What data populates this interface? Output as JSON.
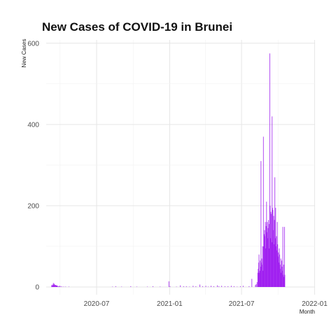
{
  "chart_data": {
    "type": "bar",
    "title": "New Cases of COVID-19 in Brunei",
    "xlabel": "Month",
    "ylabel": "New Cases",
    "x_ticks": [
      "2020-07",
      "2021-01",
      "2021-07",
      "2022-01"
    ],
    "y_ticks": [
      0,
      200,
      400,
      600
    ],
    "xlim": [
      "2020-02-25",
      "2022-01-02"
    ],
    "ylim": [
      0,
      610
    ],
    "grid": true,
    "bar_color": "#a020f0",
    "series": [
      {
        "values": [
          [
            "2020-03-09",
            1
          ],
          [
            "2020-03-10",
            5
          ],
          [
            "2020-03-11",
            4
          ],
          [
            "2020-03-12",
            6
          ],
          [
            "2020-03-13",
            3
          ],
          [
            "2020-03-14",
            10
          ],
          [
            "2020-03-15",
            6
          ],
          [
            "2020-03-16",
            8
          ],
          [
            "2020-03-17",
            6
          ],
          [
            "2020-03-18",
            4
          ],
          [
            "2020-03-19",
            5
          ],
          [
            "2020-03-20",
            5
          ],
          [
            "2020-03-21",
            3
          ],
          [
            "2020-03-22",
            4
          ],
          [
            "2020-03-23",
            4
          ],
          [
            "2020-03-24",
            3
          ],
          [
            "2020-03-26",
            2
          ],
          [
            "2020-03-28",
            2
          ],
          [
            "2020-03-30",
            3
          ],
          [
            "2020-04-02",
            2
          ],
          [
            "2020-04-05",
            1
          ],
          [
            "2020-04-09",
            1
          ],
          [
            "2020-04-14",
            1
          ],
          [
            "2020-04-22",
            1
          ],
          [
            "2020-08-10",
            1
          ],
          [
            "2020-08-18",
            2
          ],
          [
            "2020-09-02",
            1
          ],
          [
            "2020-09-25",
            2
          ],
          [
            "2020-10-10",
            1
          ],
          [
            "2020-11-06",
            1
          ],
          [
            "2020-11-20",
            2
          ],
          [
            "2020-12-08",
            1
          ],
          [
            "2020-12-30",
            14
          ],
          [
            "2021-01-02",
            2
          ],
          [
            "2021-01-18",
            1
          ],
          [
            "2021-01-28",
            4
          ],
          [
            "2021-02-05",
            2
          ],
          [
            "2021-02-12",
            2
          ],
          [
            "2021-02-20",
            1
          ],
          [
            "2021-03-01",
            3
          ],
          [
            "2021-03-08",
            2
          ],
          [
            "2021-03-18",
            6
          ],
          [
            "2021-03-25",
            2
          ],
          [
            "2021-04-02",
            3
          ],
          [
            "2021-04-08",
            1
          ],
          [
            "2021-04-15",
            3
          ],
          [
            "2021-04-22",
            2
          ],
          [
            "2021-05-01",
            4
          ],
          [
            "2021-05-05",
            2
          ],
          [
            "2021-05-12",
            3
          ],
          [
            "2021-05-20",
            2
          ],
          [
            "2021-05-28",
            2
          ],
          [
            "2021-06-05",
            3
          ],
          [
            "2021-06-12",
            2
          ],
          [
            "2021-06-20",
            1
          ],
          [
            "2021-06-28",
            2
          ],
          [
            "2021-07-05",
            3
          ],
          [
            "2021-07-20",
            2
          ],
          [
            "2021-07-27",
            20
          ],
          [
            "2021-08-05",
            5
          ],
          [
            "2021-08-07",
            7
          ],
          [
            "2021-08-09",
            12
          ],
          [
            "2021-08-11",
            35
          ],
          [
            "2021-08-12",
            45
          ],
          [
            "2021-08-13",
            60
          ],
          [
            "2021-08-14",
            80
          ],
          [
            "2021-08-15",
            35
          ],
          [
            "2021-08-16",
            40
          ],
          [
            "2021-08-17",
            65
          ],
          [
            "2021-08-18",
            50
          ],
          [
            "2021-08-19",
            310
          ],
          [
            "2021-08-20",
            60
          ],
          [
            "2021-08-21",
            70
          ],
          [
            "2021-08-22",
            55
          ],
          [
            "2021-08-23",
            100
          ],
          [
            "2021-08-24",
            40
          ],
          [
            "2021-08-25",
            370
          ],
          [
            "2021-08-26",
            100
          ],
          [
            "2021-08-27",
            130
          ],
          [
            "2021-08-28",
            140
          ],
          [
            "2021-08-29",
            125
          ],
          [
            "2021-08-30",
            160
          ],
          [
            "2021-08-31",
            95
          ],
          [
            "2021-09-01",
            150
          ],
          [
            "2021-09-02",
            210
          ],
          [
            "2021-09-03",
            135
          ],
          [
            "2021-09-04",
            160
          ],
          [
            "2021-09-05",
            120
          ],
          [
            "2021-09-06",
            145
          ],
          [
            "2021-09-07",
            165
          ],
          [
            "2021-09-08",
            95
          ],
          [
            "2021-09-09",
            155
          ],
          [
            "2021-09-10",
            575
          ],
          [
            "2021-09-11",
            200
          ],
          [
            "2021-09-12",
            120
          ],
          [
            "2021-09-13",
            185
          ],
          [
            "2021-09-14",
            180
          ],
          [
            "2021-09-15",
            110
          ],
          [
            "2021-09-16",
            420
          ],
          [
            "2021-09-17",
            195
          ],
          [
            "2021-09-18",
            190
          ],
          [
            "2021-09-19",
            140
          ],
          [
            "2021-09-20",
            175
          ],
          [
            "2021-09-21",
            105
          ],
          [
            "2021-09-22",
            165
          ],
          [
            "2021-09-23",
            270
          ],
          [
            "2021-09-24",
            120
          ],
          [
            "2021-09-25",
            195
          ],
          [
            "2021-09-26",
            100
          ],
          [
            "2021-09-27",
            125
          ],
          [
            "2021-09-28",
            90
          ],
          [
            "2021-09-29",
            160
          ],
          [
            "2021-09-30",
            105
          ],
          [
            "2021-10-01",
            75
          ],
          [
            "2021-10-02",
            85
          ],
          [
            "2021-10-03",
            60
          ],
          [
            "2021-10-04",
            95
          ],
          [
            "2021-10-05",
            80
          ],
          [
            "2021-10-06",
            55
          ],
          [
            "2021-10-07",
            45
          ],
          [
            "2021-10-08",
            70
          ],
          [
            "2021-10-09",
            35
          ],
          [
            "2021-10-10",
            65
          ],
          [
            "2021-10-11",
            50
          ],
          [
            "2021-10-12",
            40
          ],
          [
            "2021-10-13",
            148
          ],
          [
            "2021-10-14",
            30
          ],
          [
            "2021-10-15",
            55
          ],
          [
            "2021-10-16",
            25
          ],
          [
            "2021-10-17",
            148
          ],
          [
            "2021-10-18",
            30
          ]
        ]
      }
    ]
  }
}
